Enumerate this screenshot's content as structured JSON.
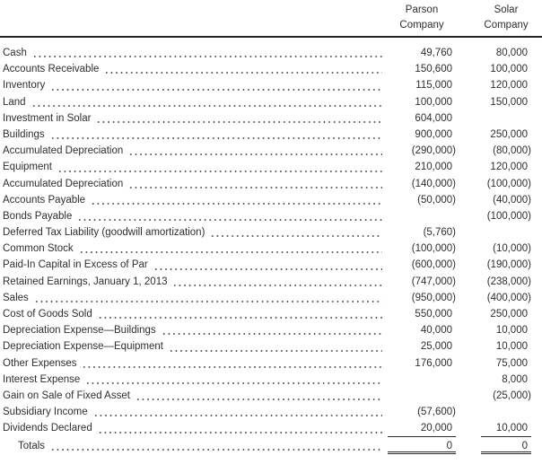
{
  "header": {
    "parson": [
      "Parson",
      "Company"
    ],
    "solar": [
      "Solar",
      "Company"
    ]
  },
  "table": {
    "rows": [
      {
        "label": "Cash",
        "parson": "49,760",
        "solar": "80,000"
      },
      {
        "label": "Accounts Receivable",
        "parson": "150,600",
        "solar": "100,000"
      },
      {
        "label": "Inventory",
        "parson": "115,000",
        "solar": "120,000"
      },
      {
        "label": "Land",
        "parson": "100,000",
        "solar": "150,000"
      },
      {
        "label": "Investment in Solar",
        "parson": "604,000",
        "solar": ""
      },
      {
        "label": "Buildings",
        "parson": "900,000",
        "solar": "250,000"
      },
      {
        "label": "Accumulated Depreciation",
        "parson": "(290,000)",
        "solar": "(80,000)"
      },
      {
        "label": "Equipment",
        "parson": "210,000",
        "solar": "120,000"
      },
      {
        "label": "Accumulated Depreciation",
        "parson": "(140,000)",
        "solar": "(100,000)"
      },
      {
        "label": "Accounts Payable",
        "parson": "(50,000)",
        "solar": "(40,000)"
      },
      {
        "label": "Bonds Payable",
        "parson": "",
        "solar": "(100,000)"
      },
      {
        "label": "Deferred Tax Liability (goodwill amortization)",
        "parson": "(5,760)",
        "solar": ""
      },
      {
        "label": "Common Stock",
        "parson": "(100,000)",
        "solar": "(10,000)"
      },
      {
        "label": "Paid-In Capital in Excess of Par",
        "parson": "(600,000)",
        "solar": "(190,000)"
      },
      {
        "label": "Retained Earnings, January 1, 2013",
        "parson": "(747,000)",
        "solar": "(238,000)"
      },
      {
        "label": "Sales",
        "parson": "(950,000)",
        "solar": "(400,000)"
      },
      {
        "label": "Cost of Goods Sold",
        "parson": "550,000",
        "solar": "250,000"
      },
      {
        "label": "Depreciation Expense—Buildings",
        "parson": "40,000",
        "solar": "10,000"
      },
      {
        "label": "Depreciation Expense—Equipment",
        "parson": "25,000",
        "solar": "10,000"
      },
      {
        "label": "Other Expenses",
        "parson": "176,000",
        "solar": "75,000"
      },
      {
        "label": "Interest Expense",
        "parson": "",
        "solar": "8,000"
      },
      {
        "label": "Gain on Sale of Fixed Asset",
        "parson": "",
        "solar": "(25,000)"
      },
      {
        "label": "Subsidiary Income",
        "parson": "(57,600)",
        "solar": ""
      },
      {
        "label": "Dividends Declared",
        "parson": "20,000",
        "solar": "10,000",
        "rule": "single"
      },
      {
        "label": "Totals",
        "parson": "0",
        "solar": "0",
        "rule": "double",
        "indent": true
      }
    ]
  },
  "colors": {
    "text": "#2e2e2e",
    "rule": "#262626",
    "background": "#ffffff"
  }
}
